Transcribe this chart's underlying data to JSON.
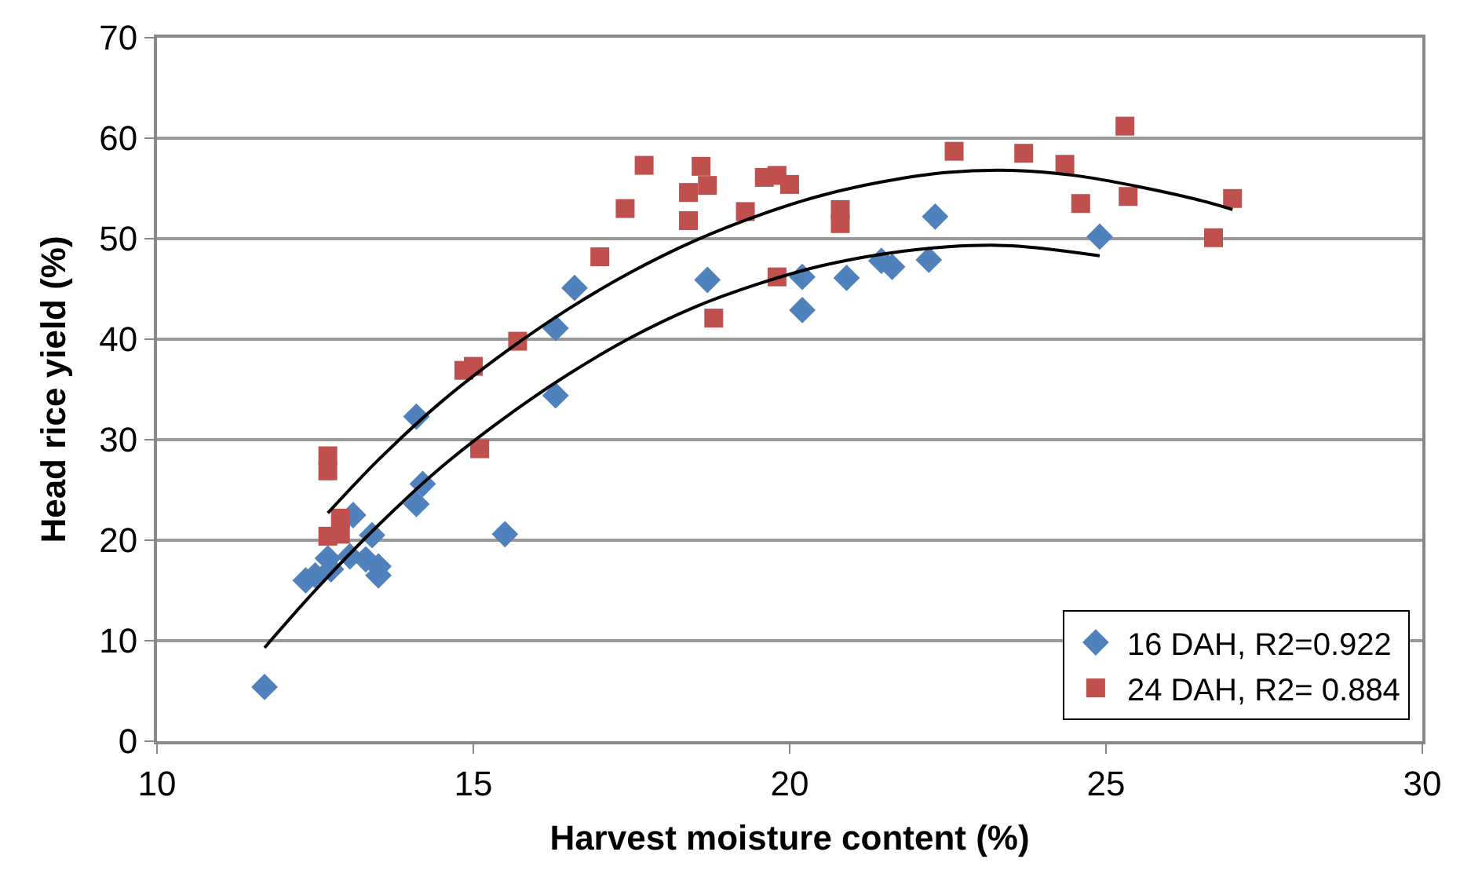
{
  "chart_data": {
    "type": "scatter",
    "xlabel": "Harvest moisture content (%)",
    "ylabel": "Head rice yield (%)",
    "xlim": [
      10,
      30
    ],
    "xticks": [
      10,
      15,
      20,
      25,
      30
    ],
    "ylim": [
      0,
      70
    ],
    "yticks": [
      0,
      10,
      20,
      30,
      40,
      50,
      60,
      70
    ],
    "grid": "y",
    "legend": "bottom right",
    "series": [
      {
        "name": "16 DAH, R2=0.922",
        "color": "#4f81bd",
        "marker": "diamond",
        "x": [
          11.7,
          12.35,
          12.5,
          12.7,
          12.75,
          13.1,
          13.05,
          13.3,
          13.4,
          13.5,
          13.5,
          14.1,
          14.2,
          14.1,
          15.5,
          16.3,
          16.3,
          16.6,
          18.7,
          20.2,
          20.2,
          20.9,
          21.45,
          21.62,
          22.2,
          22.3,
          24.9
        ],
        "values": [
          5.4,
          16,
          16.5,
          18.2,
          17.1,
          22.5,
          18.4,
          18.1,
          20.5,
          17.4,
          16.5,
          32.3,
          25.6,
          23.6,
          20.6,
          41.1,
          34.4,
          45.1,
          45.9,
          46.2,
          42.9,
          46.1,
          47.8,
          47.2,
          47.9,
          52.2,
          50.2
        ]
      },
      {
        "name": "24 DAH, R2= 0.884",
        "color": "#c0504d",
        "marker": "square",
        "x": [
          12.7,
          12.7,
          12.9,
          12.7,
          12.9,
          14.85,
          15.0,
          15.1,
          15.7,
          17.0,
          17.4,
          17.7,
          18.6,
          18.4,
          18.7,
          18.4,
          19.3,
          19.6,
          19.8,
          20.0,
          20.8,
          20.8,
          19.8,
          18.8,
          22.6,
          23.7,
          24.35,
          24.6,
          25.3,
          25.35,
          27.0,
          26.7
        ],
        "values": [
          28.4,
          26.9,
          22.2,
          20.4,
          20.6,
          36.9,
          37.3,
          29.1,
          39.8,
          48.2,
          53,
          57.3,
          57.2,
          54.6,
          55.3,
          51.8,
          52.7,
          56.1,
          56.3,
          55.4,
          52.9,
          51.5,
          46.2,
          42.1,
          58.7,
          58.5,
          57.4,
          53.5,
          61.2,
          54.2,
          54,
          50.1
        ]
      },
      {
        "type": "line",
        "color": "#000000",
        "x": [
          11.7,
          12.5,
          13.5,
          14.5,
          15.5,
          16.5,
          17.5,
          18.5,
          19.5,
          20.5,
          21.5,
          22.5,
          23.5,
          24.9
        ],
        "values": [
          9.3,
          15,
          21.5,
          27.3,
          32.2,
          36.5,
          40.2,
          43.2,
          45.5,
          47.3,
          48.5,
          49.2,
          49.3,
          48.3
        ]
      },
      {
        "type": "line",
        "color": "#000000",
        "x": [
          12.7,
          13.5,
          14.5,
          15.5,
          16.5,
          17.5,
          18.5,
          19.5,
          20.5,
          21.5,
          22.5,
          23.5,
          24.5,
          25.5,
          26.5,
          27.0
        ],
        "values": [
          22.7,
          28,
          33.8,
          38.7,
          43,
          46.7,
          49.8,
          52.3,
          54.3,
          55.7,
          56.6,
          56.8,
          56.3,
          55.2,
          53.8,
          52.9
        ]
      }
    ]
  }
}
